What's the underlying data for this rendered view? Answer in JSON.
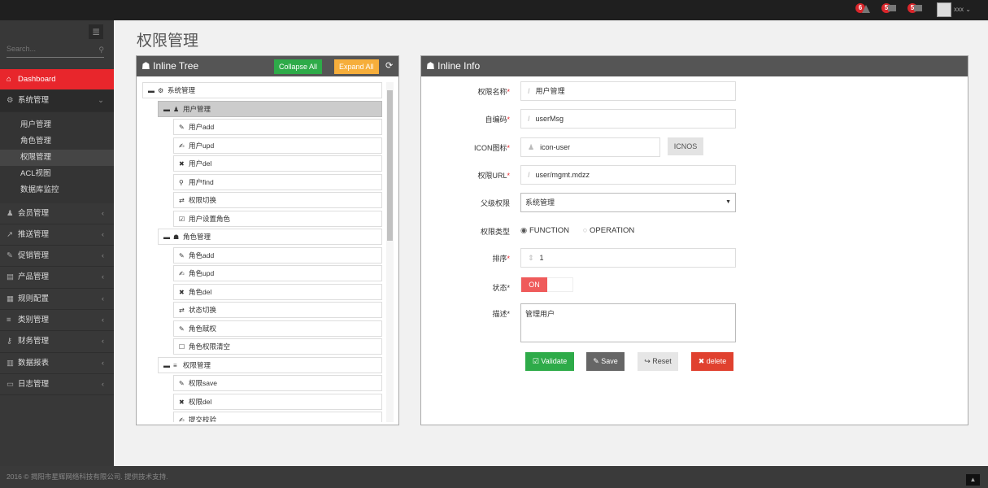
{
  "topbar": {
    "badges": [
      "6",
      "5",
      "5"
    ],
    "user": "xxx"
  },
  "sidebar": {
    "search_placeholder": "Search...",
    "items": [
      {
        "label": "Dashboard",
        "icon": "home-icon",
        "glyph": "⌂",
        "active": true
      },
      {
        "label": "系统管理",
        "icon": "cogs-icon",
        "glyph": "⚙",
        "open": true,
        "children": [
          "用户管理",
          "角色管理",
          "权限管理",
          "ACL视图",
          "数据库监控"
        ],
        "current": "权限管理"
      },
      {
        "label": "会员管理",
        "icon": "user-icon",
        "glyph": "♟"
      },
      {
        "label": "推送管理",
        "icon": "share-icon",
        "glyph": "↗"
      },
      {
        "label": "促销管理",
        "icon": "pencil-icon",
        "glyph": "✎"
      },
      {
        "label": "产品管理",
        "icon": "book-icon",
        "glyph": "▤"
      },
      {
        "label": "规则配置",
        "icon": "list-alt-icon",
        "glyph": "▦"
      },
      {
        "label": "类别管理",
        "icon": "list-icon",
        "glyph": "≡"
      },
      {
        "label": "财务管理",
        "icon": "key-icon",
        "glyph": "⚷"
      },
      {
        "label": "数据报表",
        "icon": "chart-icon",
        "glyph": "▥"
      },
      {
        "label": "日志管理",
        "icon": "credit-card-icon",
        "glyph": "▭"
      }
    ]
  },
  "page_title": "权限管理",
  "tree_panel": {
    "title": "Inline Tree",
    "collapse_all": "Collapse All",
    "expand_all": "Expand All",
    "nodes": [
      {
        "label": "系统管理",
        "level": 0,
        "icon": "cogs-icon",
        "glyph": "⚙",
        "toggle": true
      },
      {
        "label": "用户管理",
        "level": 1,
        "icon": "user-icon",
        "glyph": "♟",
        "toggle": true,
        "selected": true
      },
      {
        "label": "用户add",
        "level": 2,
        "icon": "pencil-icon",
        "glyph": "✎"
      },
      {
        "label": "用户upd",
        "level": 2,
        "icon": "edit-icon",
        "glyph": "✍"
      },
      {
        "label": "用户del",
        "level": 2,
        "icon": "remove-icon",
        "glyph": "✖"
      },
      {
        "label": "用户find",
        "level": 2,
        "icon": "search-icon",
        "glyph": "⚲"
      },
      {
        "label": "权限切换",
        "level": 2,
        "icon": "retweet-icon",
        "glyph": "⇄"
      },
      {
        "label": "用户设置角色",
        "level": 2,
        "icon": "check-icon",
        "glyph": "☑"
      },
      {
        "label": "角色管理",
        "level": 1,
        "icon": "sitemap-icon",
        "glyph": "☗",
        "toggle": true
      },
      {
        "label": "角色add",
        "level": 2,
        "icon": "pencil-icon",
        "glyph": "✎"
      },
      {
        "label": "角色upd",
        "level": 2,
        "icon": "edit-icon",
        "glyph": "✍"
      },
      {
        "label": "角色del",
        "level": 2,
        "icon": "remove-icon",
        "glyph": "✖"
      },
      {
        "label": "状态切换",
        "level": 2,
        "icon": "retweet-icon",
        "glyph": "⇄"
      },
      {
        "label": "角色赋权",
        "level": 2,
        "icon": "pencil-icon",
        "glyph": "✎"
      },
      {
        "label": "角色权限清空",
        "level": 2,
        "icon": "checkbox-empty-icon",
        "glyph": "☐"
      },
      {
        "label": "权限管理",
        "level": 1,
        "icon": "list-icon",
        "glyph": "≡",
        "toggle": true
      },
      {
        "label": "权限save",
        "level": 2,
        "icon": "pencil-icon",
        "glyph": "✎"
      },
      {
        "label": "权限del",
        "level": 2,
        "icon": "remove-icon",
        "glyph": "✖"
      },
      {
        "label": "提交校验",
        "level": 2,
        "icon": "edit-icon",
        "glyph": "✍"
      }
    ]
  },
  "info_panel": {
    "title": "Inline Info",
    "name_label": "权限名称",
    "name_value": "用户管理",
    "code_label": "自编码",
    "code_value": "userMsg",
    "icon_label": "ICON图标",
    "icon_value": "icon-user",
    "icnos_button": "ICNOS",
    "url_label": "权限URL",
    "url_value": "user/mgmt.mdzz",
    "parent_label": "父级权限",
    "parent_value": "系统管理",
    "type_label": "权限类型",
    "type_options": [
      "FUNCTION",
      "OPERATION"
    ],
    "type_selected": "FUNCTION",
    "order_label": "排序",
    "order_value": "1",
    "status_label": "状态",
    "status_value": "ON",
    "desc_label": "描述",
    "desc_value": "管理用户",
    "buttons": {
      "validate": "Validate",
      "save": "Save",
      "reset": "Reset",
      "delete": "delete"
    }
  },
  "colors": {
    "accent": "#e8262c",
    "success": "#2eab49",
    "warning": "#f6ae3b",
    "dark": "#555555",
    "danger": "#e0412f",
    "toggle_on": "#ef5b5b"
  },
  "footer": {
    "text": "2016 © 揭阳市星辉网络科技有限公司. 提供技术支持."
  }
}
